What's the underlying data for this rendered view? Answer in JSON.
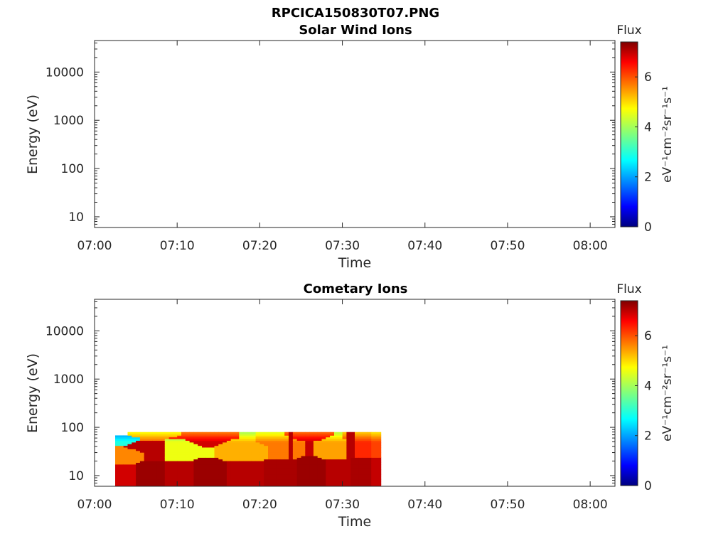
{
  "figure_title": "RPCICA150830T07.PNG",
  "chart_data": [
    {
      "type": "heatmap",
      "title": "Solar Wind Ions",
      "xlabel": "Time",
      "ylabel": "Energy (eV)",
      "y_scale": "log",
      "ylim": [
        6,
        45000
      ],
      "xlim": [
        "07:00",
        "08:03"
      ],
      "x_ticks": [
        "07:00",
        "07:10",
        "07:20",
        "07:30",
        "07:40",
        "07:50",
        "08:00"
      ],
      "y_ticks": [
        "10",
        "100",
        "1000",
        "10000"
      ],
      "colorbar": {
        "title": "Flux",
        "label": "eV⁻¹cm⁻²sr⁻¹s⁻¹",
        "range": [
          0,
          7.4
        ],
        "ticks": [
          "0",
          "2",
          "4",
          "6"
        ],
        "colormap": "jet"
      },
      "data": []
    },
    {
      "type": "heatmap",
      "title": "Cometary Ions",
      "xlabel": "Time",
      "ylabel": "Energy (eV)",
      "y_scale": "log",
      "ylim": [
        6,
        45000
      ],
      "xlim": [
        "07:00",
        "08:03"
      ],
      "x_ticks": [
        "07:00",
        "07:10",
        "07:20",
        "07:30",
        "07:40",
        "07:50",
        "08:00"
      ],
      "y_ticks": [
        "10",
        "100",
        "1000",
        "10000"
      ],
      "colorbar": {
        "title": "Flux",
        "label": "eV⁻¹cm⁻²sr⁻¹s⁻¹",
        "range": [
          0,
          7.4
        ],
        "ticks": [
          "0",
          "2",
          "4",
          "6"
        ],
        "colormap": "jet"
      },
      "data_extent": {
        "time_start": "07:02:30",
        "time_end": "07:34:40",
        "energy_min": 6,
        "energy_max": 80
      },
      "data_gaps": [
        "07:23:30",
        "07:30:40"
      ],
      "data": [
        {
          "time": "07:03",
          "energy_ev": 10,
          "flux": 6.8
        },
        {
          "time": "07:03",
          "energy_ev": 30,
          "flux": 5.5
        },
        {
          "time": "07:03",
          "energy_ev": 60,
          "flux": 3.0
        },
        {
          "time": "07:06",
          "energy_ev": 10,
          "flux": 7.2
        },
        {
          "time": "07:06",
          "energy_ev": 40,
          "flux": 7.0
        },
        {
          "time": "07:06",
          "energy_ev": 70,
          "flux": 5.8
        },
        {
          "time": "07:10",
          "energy_ev": 10,
          "flux": 7.0
        },
        {
          "time": "07:10",
          "energy_ev": 40,
          "flux": 4.5
        },
        {
          "time": "07:13",
          "energy_ev": 10,
          "flux": 7.2
        },
        {
          "time": "07:13",
          "energy_ev": 60,
          "flux": 6.8
        },
        {
          "time": "07:18",
          "energy_ev": 10,
          "flux": 7.0
        },
        {
          "time": "07:18",
          "energy_ev": 40,
          "flux": 5.2
        },
        {
          "time": "07:22",
          "energy_ev": 10,
          "flux": 7.1
        },
        {
          "time": "07:22",
          "energy_ev": 50,
          "flux": 5.6
        },
        {
          "time": "07:26",
          "energy_ev": 10,
          "flux": 7.2
        },
        {
          "time": "07:26",
          "energy_ev": 70,
          "flux": 6.9
        },
        {
          "time": "07:29",
          "energy_ev": 10,
          "flux": 7.0
        },
        {
          "time": "07:29",
          "energy_ev": 50,
          "flux": 5.3
        },
        {
          "time": "07:32",
          "energy_ev": 10,
          "flux": 7.1
        },
        {
          "time": "07:32",
          "energy_ev": 60,
          "flux": 6.2
        },
        {
          "time": "07:34",
          "energy_ev": 10,
          "flux": 6.9
        },
        {
          "time": "07:34",
          "energy_ev": 60,
          "flux": 6.0
        }
      ]
    }
  ]
}
